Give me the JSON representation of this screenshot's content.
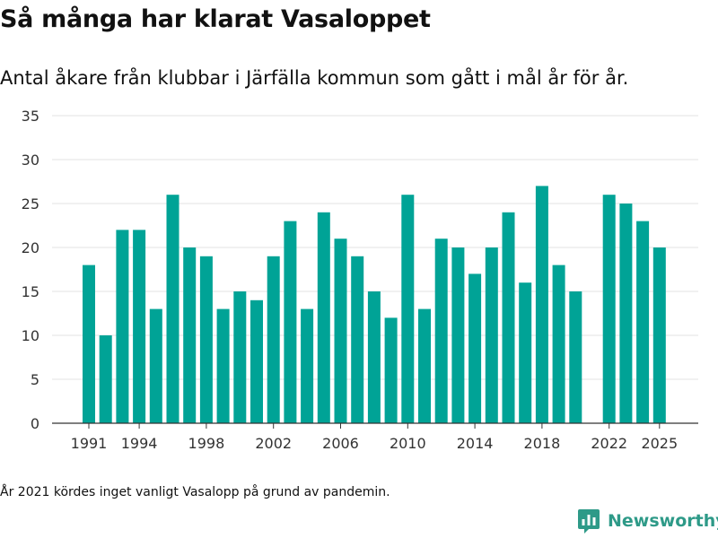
{
  "header": {
    "title": "Så många har klarat Vasaloppet",
    "subtitle": "Antal åkare från klubbar i Järfälla kommun som gått i mål år för år."
  },
  "footnote": "År 2021 kördes inget vanligt Vasalopp på grund av pandemin.",
  "brand": {
    "name": "Newsworthy",
    "icon": "newsworthy-logo-icon",
    "color": "#2e9a88"
  },
  "colors": {
    "bar": "#00a396",
    "grid": "#e3e3e3",
    "axis": "#333333"
  },
  "chart_data": {
    "type": "bar",
    "title": "Så många har klarat Vasaloppet",
    "xlabel": "",
    "ylabel": "",
    "ylim": [
      0,
      35
    ],
    "yticks": [
      0,
      5,
      10,
      15,
      20,
      25,
      30,
      35
    ],
    "xticks": [
      1991,
      1994,
      1998,
      2002,
      2006,
      2010,
      2014,
      2018,
      2022,
      2025
    ],
    "grid": true,
    "categories": [
      1991,
      1992,
      1993,
      1994,
      1995,
      1996,
      1997,
      1998,
      1999,
      2000,
      2001,
      2002,
      2003,
      2004,
      2005,
      2006,
      2007,
      2008,
      2009,
      2010,
      2011,
      2012,
      2013,
      2014,
      2015,
      2016,
      2017,
      2018,
      2019,
      2020,
      2021,
      2022,
      2023,
      2024,
      2025
    ],
    "values": [
      18,
      10,
      22,
      22,
      13,
      26,
      20,
      19,
      13,
      15,
      14,
      19,
      23,
      13,
      24,
      21,
      19,
      15,
      12,
      26,
      13,
      21,
      20,
      17,
      20,
      24,
      16,
      27,
      18,
      15,
      null,
      26,
      25,
      23,
      20
    ]
  }
}
